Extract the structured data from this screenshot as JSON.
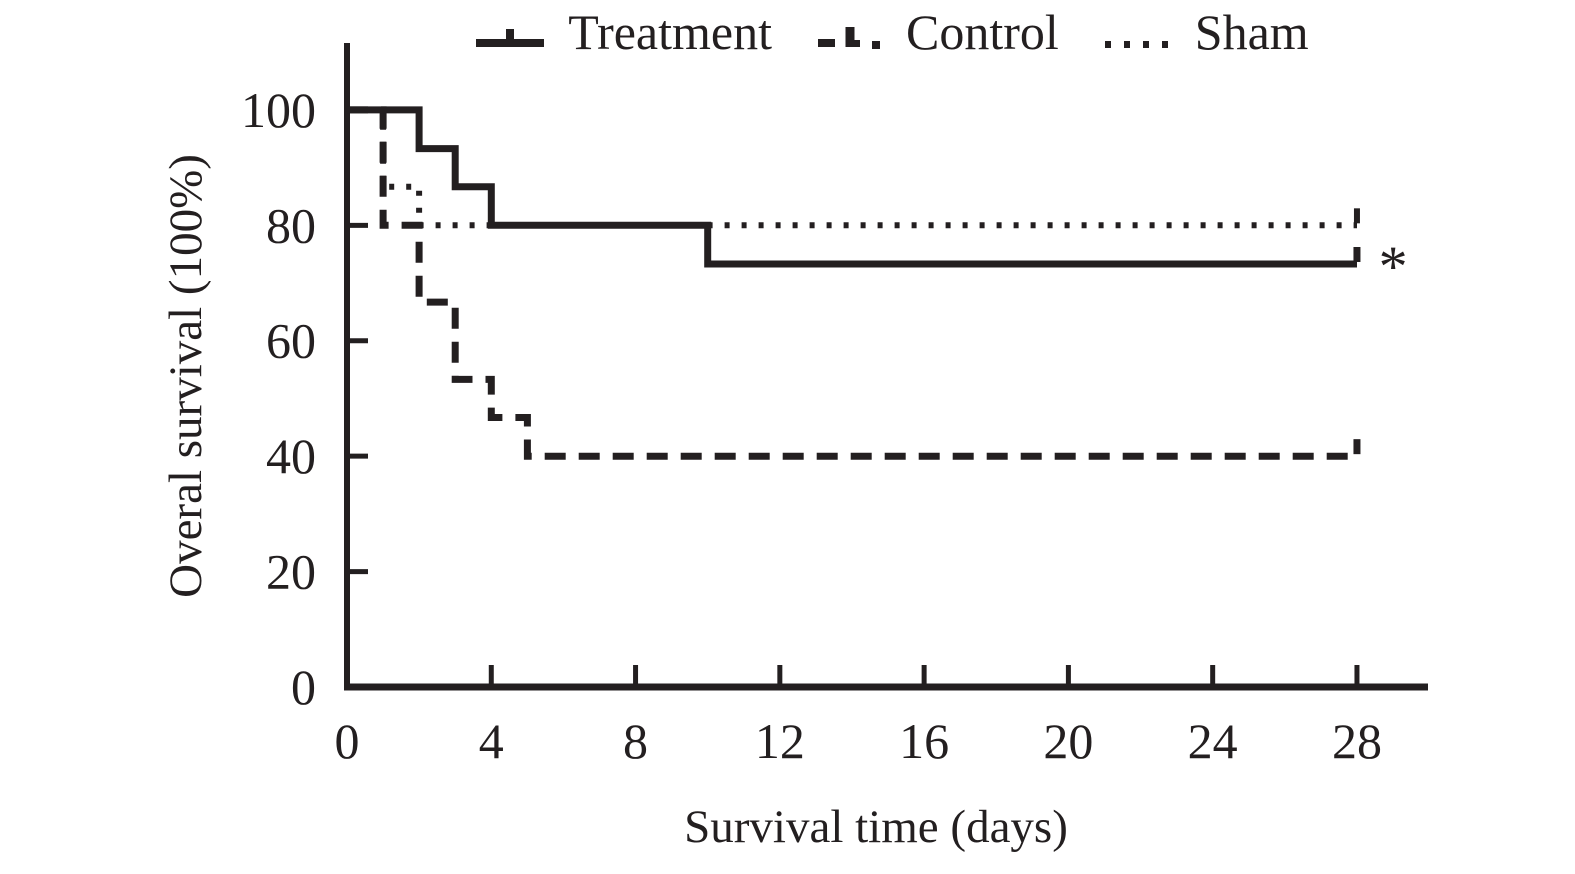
{
  "colors": {
    "line": "#231f20",
    "background": "#ffffff"
  },
  "legend": {
    "items": [
      {
        "icon": "solid-line-with-censor-tick-icon",
        "label": "Treatment"
      },
      {
        "icon": "dashed-line-with-censor-tick-icon",
        "label": "Control"
      },
      {
        "icon": "dotted-line-icon",
        "label": "Sham"
      }
    ]
  },
  "annotation": {
    "text": "*"
  },
  "chart_data": {
    "type": "line",
    "subtype": "kaplan-meier-step",
    "title": "",
    "xlabel": "Survival time (days)",
    "ylabel": "Overal survival (100%)",
    "xlim": [
      0,
      30
    ],
    "ylim": [
      0,
      112
    ],
    "x_ticks": [
      0,
      4,
      8,
      12,
      16,
      20,
      24,
      28
    ],
    "y_ticks": [
      0,
      20,
      40,
      60,
      80,
      100
    ],
    "grid": false,
    "legend_position": "top",
    "series": [
      {
        "name": "Treatment",
        "style": "solid",
        "points": [
          [
            0,
            100
          ],
          [
            2,
            100
          ],
          [
            2,
            93.3
          ],
          [
            3,
            93.3
          ],
          [
            3,
            86.7
          ],
          [
            4,
            86.7
          ],
          [
            4,
            80
          ],
          [
            10,
            80
          ],
          [
            10,
            73.3
          ],
          [
            28,
            73.3
          ]
        ],
        "censor_at_end_day": 28
      },
      {
        "name": "Control",
        "style": "dashed",
        "points": [
          [
            0,
            100
          ],
          [
            1,
            100
          ],
          [
            1,
            80
          ],
          [
            2,
            80
          ],
          [
            2,
            66.7
          ],
          [
            3,
            66.7
          ],
          [
            3,
            53.3
          ],
          [
            4,
            53.3
          ],
          [
            4,
            46.7
          ],
          [
            5,
            46.7
          ],
          [
            5,
            40
          ],
          [
            28,
            40
          ]
        ],
        "censor_at_end_day": 28
      },
      {
        "name": "Sham",
        "style": "dotted",
        "points": [
          [
            0,
            100
          ],
          [
            1,
            100
          ],
          [
            1,
            86.7
          ],
          [
            2,
            86.7
          ],
          [
            2,
            80
          ],
          [
            28,
            80
          ]
        ],
        "censor_at_end_day": 28
      }
    ],
    "annotations": [
      {
        "text": "*",
        "x": 28.6,
        "y": 73.3,
        "meaning": "significance-marker-next-to-treatment-curve-end"
      }
    ]
  }
}
